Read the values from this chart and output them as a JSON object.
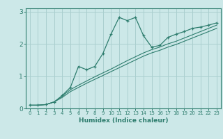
{
  "xlabel": "Humidex (Indice chaleur)",
  "background_color": "#cce8e8",
  "line_color": "#2e7d6e",
  "grid_color": "#aacfcf",
  "x_data": [
    0,
    1,
    2,
    3,
    4,
    5,
    6,
    7,
    8,
    9,
    10,
    11,
    12,
    13,
    14,
    15,
    16,
    17,
    18,
    19,
    20,
    21,
    22,
    23
  ],
  "y_main": [
    0.1,
    0.1,
    0.12,
    0.2,
    0.4,
    0.65,
    1.3,
    1.2,
    1.3,
    1.7,
    2.3,
    2.82,
    2.72,
    2.82,
    2.25,
    1.9,
    1.95,
    2.2,
    2.3,
    2.38,
    2.48,
    2.52,
    2.58,
    2.65
  ],
  "y_line1": [
    0.1,
    0.1,
    0.12,
    0.2,
    0.38,
    0.58,
    0.72,
    0.85,
    0.98,
    1.1,
    1.22,
    1.35,
    1.48,
    1.6,
    1.72,
    1.82,
    1.9,
    2.0,
    2.08,
    2.18,
    2.28,
    2.38,
    2.48,
    2.58
  ],
  "y_line2": [
    0.1,
    0.1,
    0.12,
    0.2,
    0.34,
    0.52,
    0.65,
    0.78,
    0.9,
    1.02,
    1.14,
    1.26,
    1.38,
    1.5,
    1.62,
    1.72,
    1.8,
    1.9,
    1.98,
    2.08,
    2.18,
    2.28,
    2.38,
    2.48
  ],
  "ylim": [
    0,
    3.1
  ],
  "xlim": [
    -0.5,
    23.5
  ],
  "yticks": [
    0,
    1,
    2,
    3
  ],
  "xticks": [
    0,
    1,
    2,
    3,
    4,
    5,
    6,
    7,
    8,
    9,
    10,
    11,
    12,
    13,
    14,
    15,
    16,
    17,
    18,
    19,
    20,
    21,
    22,
    23
  ]
}
